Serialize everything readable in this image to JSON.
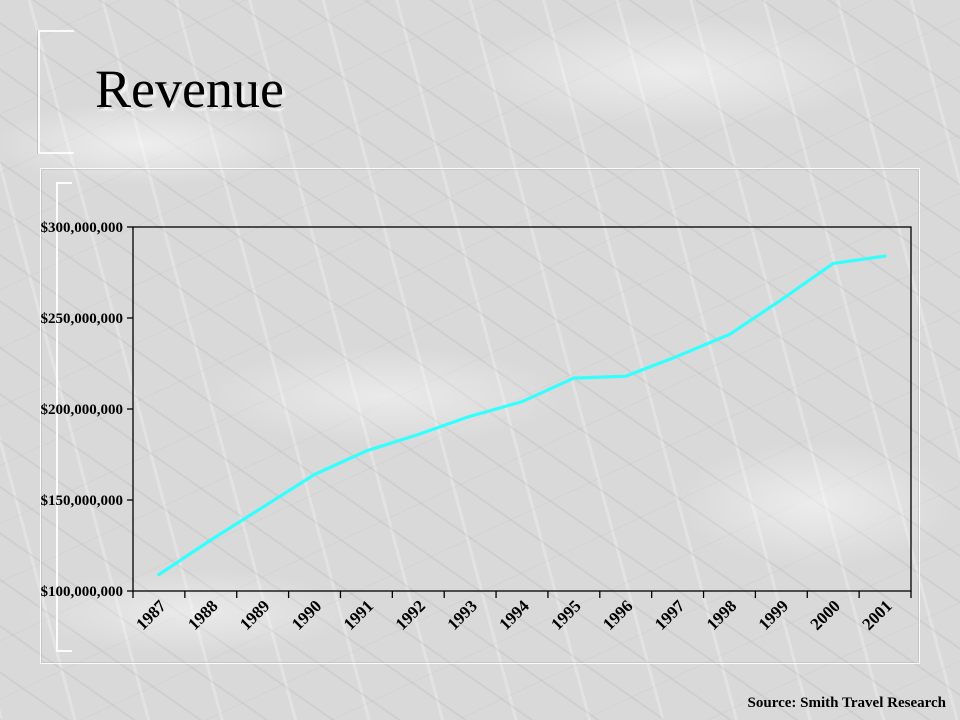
{
  "slide": {
    "title": "Revenue",
    "source": "Source: Smith Travel Research"
  },
  "colors": {
    "line": "#33ffff",
    "axis": "#000000"
  },
  "chart_data": {
    "type": "line",
    "title": "",
    "xlabel": "",
    "ylabel": "",
    "categories": [
      "1987",
      "1988",
      "1989",
      "1990",
      "1991",
      "1992",
      "1993",
      "1994",
      "1995",
      "1996",
      "1997",
      "1998",
      "1999",
      "2000",
      "2001"
    ],
    "series": [
      {
        "values": [
          109000000,
          128000000,
          146000000,
          164000000,
          177000000,
          186000000,
          196000000,
          204000000,
          217000000,
          218000000,
          229000000,
          241000000,
          260000000,
          280000000,
          284000000
        ]
      }
    ],
    "y_ticks": [
      "$100,000,000",
      "$150,000,000",
      "$200,000,000",
      "$250,000,000",
      "$300,000,000"
    ],
    "y_tick_values": [
      100000000,
      150000000,
      200000000,
      250000000,
      300000000
    ],
    "ylim": [
      100000000,
      300000000
    ],
    "grid": false,
    "legend": "none"
  }
}
